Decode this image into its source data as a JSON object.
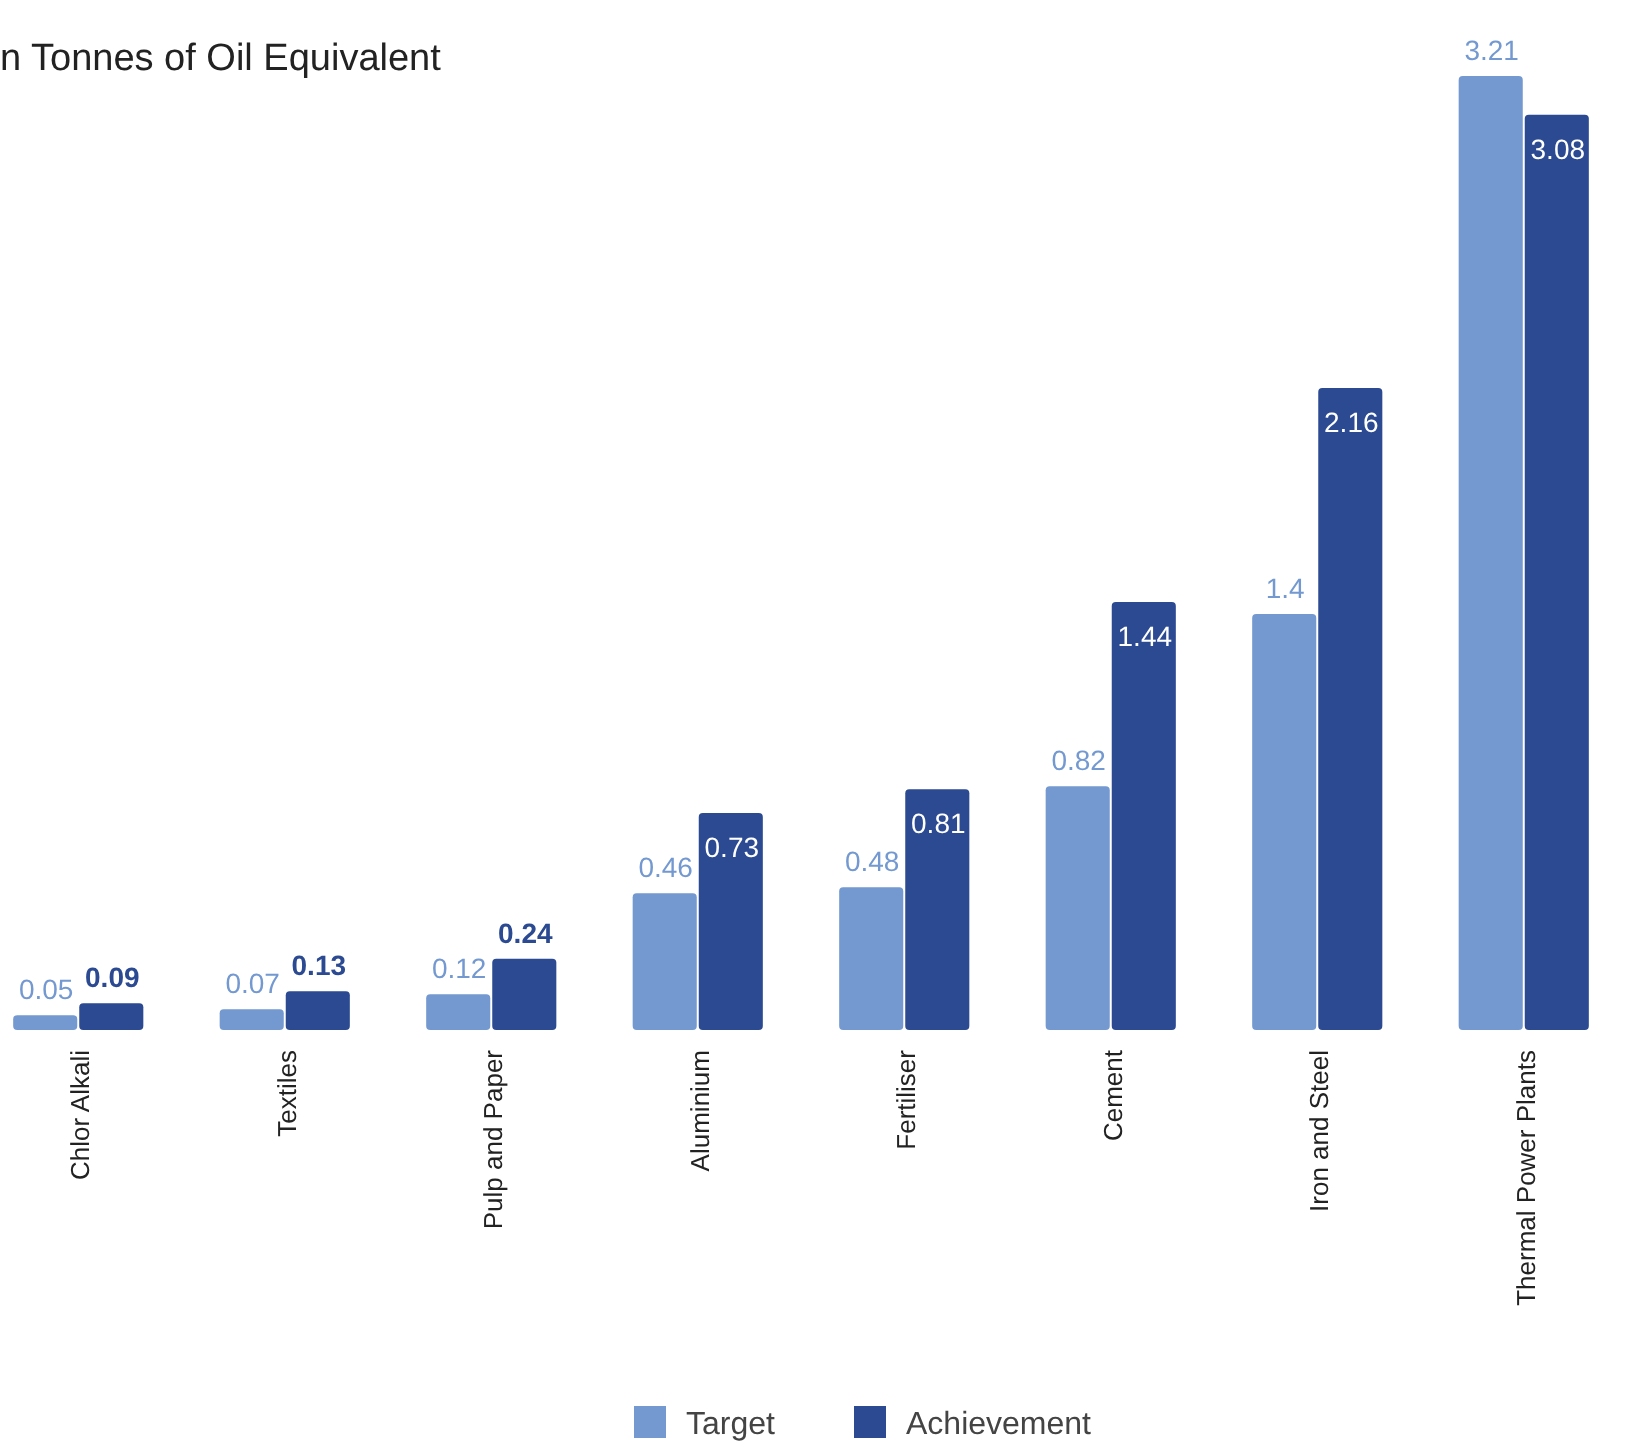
{
  "chart_data": {
    "type": "bar",
    "title": "n Tonnes of Oil Equivalent",
    "categories": [
      "Chlor Alkali",
      "Textiles",
      "Pulp and Paper",
      "Aluminium",
      "Fertiliser",
      "Cement",
      "Iron and Steel",
      "Thermal Power Plants"
    ],
    "series": [
      {
        "name": "Target",
        "color": "#7399d0",
        "values": [
          0.05,
          0.07,
          0.12,
          0.46,
          0.48,
          0.82,
          1.4,
          3.21
        ]
      },
      {
        "name": "Achievement",
        "color": "#2b4a91",
        "values": [
          0.09,
          0.13,
          0.24,
          0.73,
          0.81,
          1.44,
          2.16,
          3.08
        ]
      }
    ],
    "data_labels": true,
    "legend": "bottom"
  }
}
